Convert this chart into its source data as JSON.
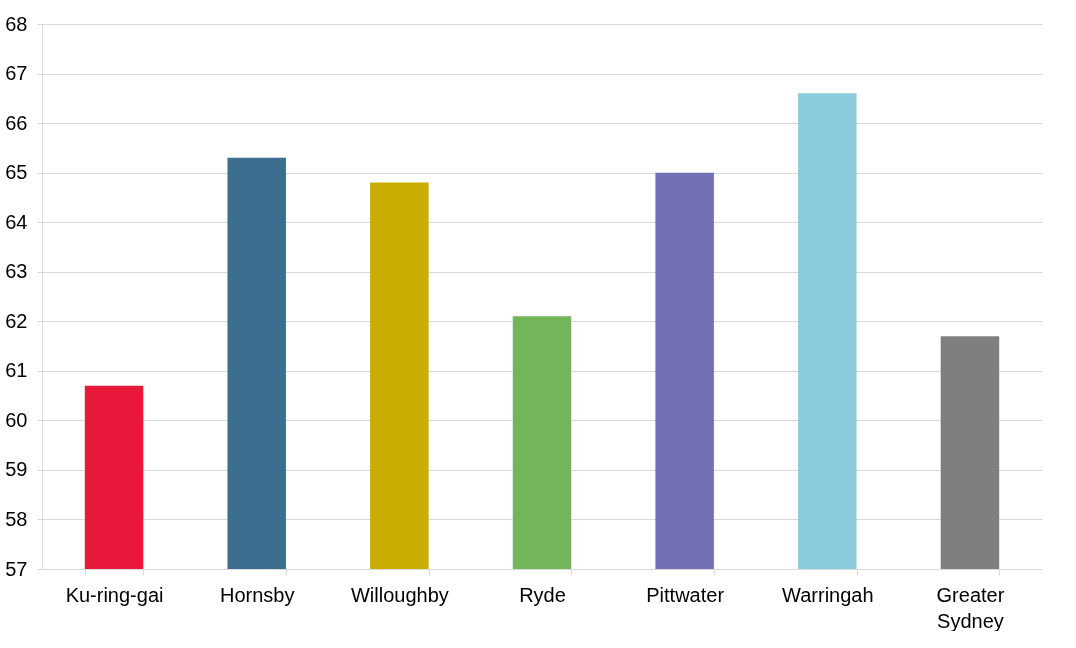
{
  "chart_data": {
    "type": "bar",
    "categories": [
      "Ku-ring-gai",
      "Hornsby",
      "Willoughby",
      "Ryde",
      "Pittwater",
      "Warringah",
      "Greater Sydney"
    ],
    "values": [
      60.7,
      65.3,
      64.8,
      62.1,
      65.0,
      66.6,
      61.7
    ],
    "colors": [
      "#e8193a",
      "#3c6e8f",
      "#c9ad00",
      "#73b65a",
      "#7170b4",
      "#8ccbdd",
      "#7f7f7f"
    ],
    "ylim": [
      57,
      68
    ],
    "yticks": [
      57,
      58,
      59,
      60,
      61,
      62,
      63,
      64,
      65,
      66,
      67,
      68
    ],
    "grid": "y"
  }
}
